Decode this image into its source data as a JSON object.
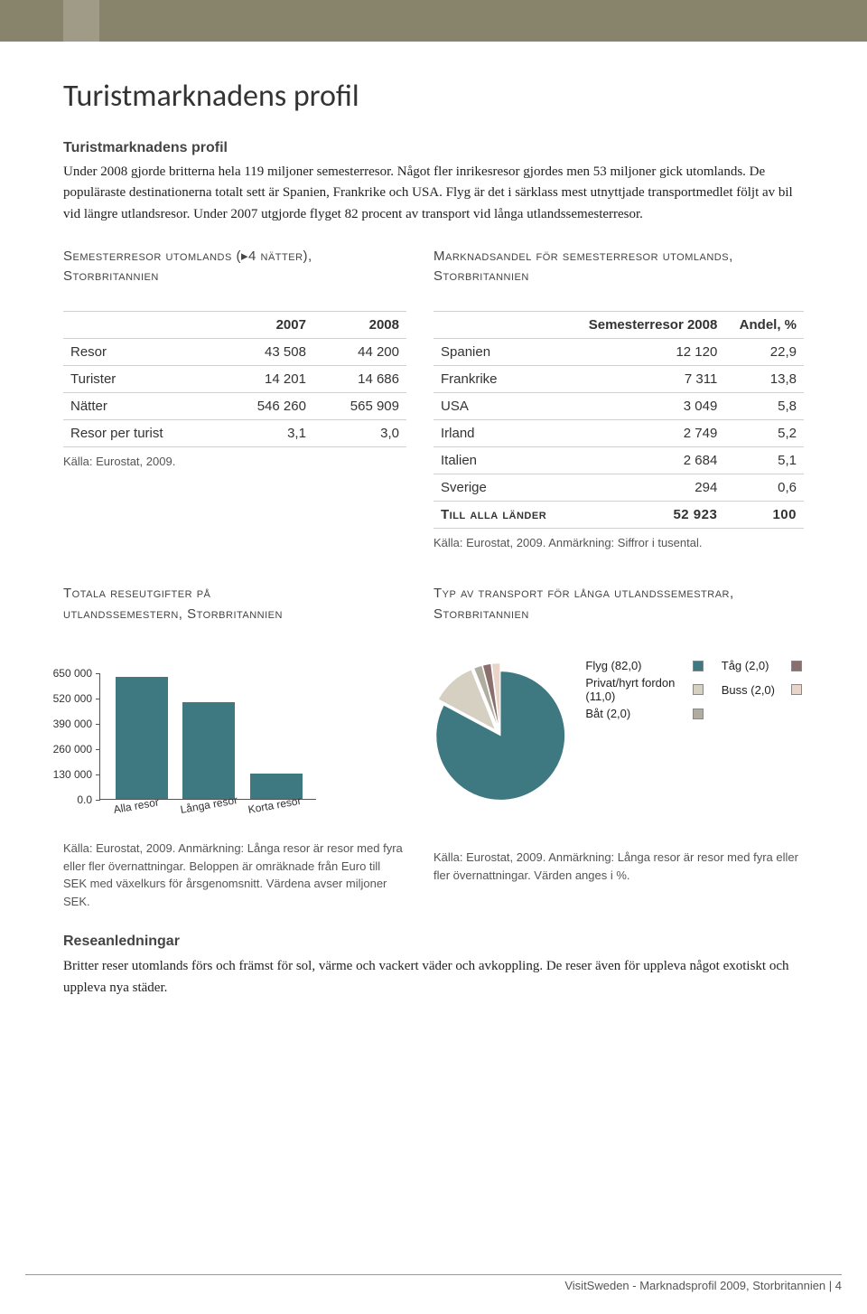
{
  "page": {
    "title": "Turistmarknadens profil",
    "subhead": "Turistmarknadens profil",
    "intro": "Under 2008 gjorde britterna hela 119 miljoner semesterresor. Något fler inrikesresor gjordes men 53 miljoner gick utomlands. De populäraste destinationerna totalt sett är Spanien, Frankrike och USA. Flyg är det i särklass mest utnyttjade transportmedlet följt av bil vid längre utlandsresor. Under 2007 utgjorde flyget 82 procent av transport vid långa utlandssemesterresor.",
    "footer": "VisitSweden - Marknadsprofil 2009, Storbritannien | 4"
  },
  "table1": {
    "title_line1": "Semesterresor utomlands (▸4 nätter),",
    "title_line2": "Storbritannien",
    "headers": [
      "",
      "2007",
      "2008"
    ],
    "rows": [
      [
        "Resor",
        "43 508",
        "44 200"
      ],
      [
        "Turister",
        "14 201",
        "14 686"
      ],
      [
        "Nätter",
        "546 260",
        "565 909"
      ],
      [
        "Resor per turist",
        "3,1",
        "3,0"
      ]
    ],
    "source": "Källa: Eurostat, 2009."
  },
  "table2": {
    "title_line1": "Marknadsandel för semesterresor utomlands,",
    "title_line2": "Storbritannien",
    "headers": [
      "",
      "Semesterresor 2008",
      "Andel, %"
    ],
    "rows": [
      [
        "Spanien",
        "12 120",
        "22,9"
      ],
      [
        "Frankrike",
        "7 311",
        "13,8"
      ],
      [
        "USA",
        "3 049",
        "5,8"
      ],
      [
        "Irland",
        "2 749",
        "5,2"
      ],
      [
        "Italien",
        "2 684",
        "5,1"
      ],
      [
        "Sverige",
        "294",
        "0,6"
      ]
    ],
    "footer_row": [
      "Till alla länder",
      "52 923",
      "100"
    ],
    "source": "Källa: Eurostat, 2009. Anmärkning: Siffror i tusental."
  },
  "barChart": {
    "title_line1": "Totala reseutgifter på",
    "title_line2": "utlandssemestern, Storbritannien",
    "type": "bar",
    "categories": [
      "Alla resor",
      "Långa resor",
      "Korta resor"
    ],
    "values": [
      630000,
      500000,
      130000
    ],
    "bar_color": "#3e7880",
    "y_ticks": [
      0,
      130000,
      260000,
      390000,
      520000,
      650000
    ],
    "y_labels": [
      "0.0",
      "130 000",
      "260 000",
      "390 000",
      "520 000",
      "650 000"
    ],
    "ymax": 650000,
    "source": "Källa: Eurostat, 2009. Anmärkning: Långa resor är resor med fyra eller fler övernattningar. Beloppen är omräknade från Euro till SEK med växelkurs för årsgenomsnitt. Värdena avser miljoner SEK."
  },
  "pieChart": {
    "title": "Typ av transport för långa utlandssemestrar, Storbritannien",
    "type": "pie",
    "slices": [
      {
        "label": "Flyg (82,0)",
        "value": 82.0,
        "color": "#3e7880"
      },
      {
        "label": "Privat/hyrt fordon (11,0)",
        "value": 11.0,
        "color": "#d6d0c2"
      },
      {
        "label": "Båt (2,0)",
        "value": 2.0,
        "color": "#b0aca0"
      },
      {
        "label": "Tåg (2,0)",
        "value": 2.0,
        "color": "#8b6f6f"
      },
      {
        "label": "Buss (2,0)",
        "value": 2.0,
        "color": "#e8d4c8"
      }
    ],
    "source": "Källa: Eurostat, 2009. Anmärkning: Långa resor är resor med fyra eller fler övernattningar. Värden anges i %."
  },
  "reasons": {
    "heading": "Reseanledningar",
    "text": "Britter reser utomlands förs och främst för sol, värme och vackert väder och avkoppling. De reser även för uppleva något exotiskt och uppleva nya städer."
  }
}
